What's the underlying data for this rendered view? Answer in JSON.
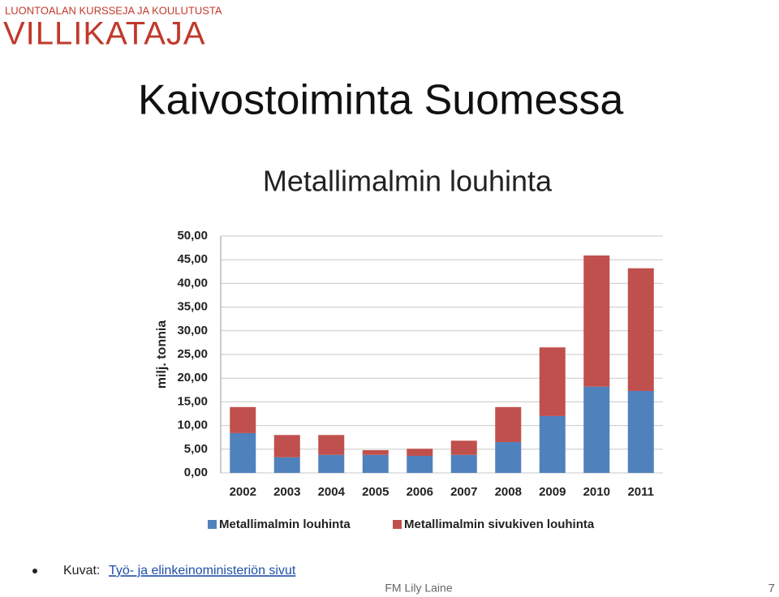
{
  "logo": {
    "tagline": "LUONTOALAN KURSSEJA JA KOULUTUSTA",
    "name": "VILLIKATAJA"
  },
  "slide_title": "Kaivostoiminta Suomessa",
  "chart_data": {
    "type": "stacked_bar",
    "title": "Metallimalmin louhinta",
    "y_label": "milj. tonnia",
    "categories": [
      "2002",
      "2003",
      "2004",
      "2005",
      "2006",
      "2007",
      "2008",
      "2009",
      "2010",
      "2011"
    ],
    "series": [
      {
        "name": "Metallimalmin louhinta",
        "color": "#4f81bd",
        "values": [
          8.4,
          3.3,
          3.8,
          3.8,
          3.6,
          3.8,
          6.5,
          12.0,
          18.2,
          17.3
        ]
      },
      {
        "name": "Metallimalmin sivukiven louhinta",
        "color": "#c0504d",
        "values": [
          5.5,
          4.7,
          4.2,
          1.0,
          1.5,
          3.0,
          7.4,
          14.5,
          27.7,
          25.9
        ]
      }
    ],
    "ylim": [
      0,
      50
    ],
    "yticks": [
      {
        "value": 0,
        "label": "0,00"
      },
      {
        "value": 5,
        "label": "5,00"
      },
      {
        "value": 10,
        "label": "10,00"
      },
      {
        "value": 15,
        "label": "15,00"
      },
      {
        "value": 20,
        "label": "20,00"
      },
      {
        "value": 25,
        "label": "25,00"
      },
      {
        "value": 30,
        "label": "30,00"
      },
      {
        "value": 35,
        "label": "35,00"
      },
      {
        "value": 40,
        "label": "40,00"
      },
      {
        "value": 45,
        "label": "45,00"
      },
      {
        "value": 50,
        "label": "50,00"
      }
    ],
    "grid": true
  },
  "source": {
    "prefix": "Kuvat:",
    "link": "Työ- ja elinkeinoministeriön sivut"
  },
  "footer": {
    "author": "FM Lily Laine",
    "page": "7"
  }
}
